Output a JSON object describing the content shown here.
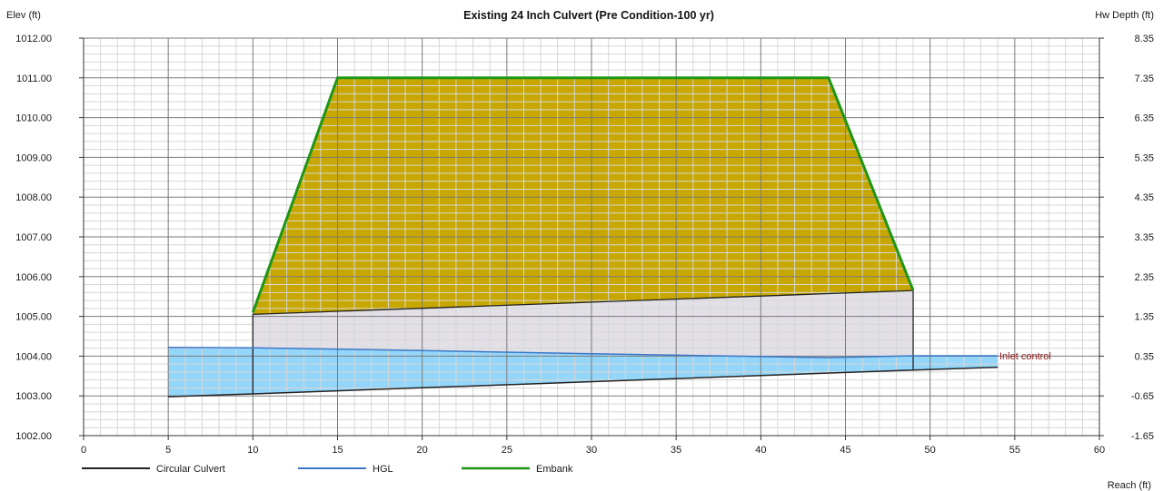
{
  "chart_data": {
    "type": "line",
    "title": "Existing 24 Inch Culvert (Pre Condition-100 yr)",
    "ylabel": "Elev (ft)",
    "y2label": "Hw Depth (ft)",
    "xlabel": "Reach (ft)",
    "xlim": [
      0,
      60
    ],
    "ylim": [
      1002,
      1012
    ],
    "x_ticks": [
      "0",
      "5",
      "10",
      "15",
      "20",
      "25",
      "30",
      "35",
      "40",
      "45",
      "50",
      "55",
      "60"
    ],
    "y_ticks": [
      "1002.00",
      "1003.00",
      "1004.00",
      "1005.00",
      "1006.00",
      "1007.00",
      "1008.00",
      "1009.00",
      "1010.00",
      "1011.00",
      "1012.00"
    ],
    "y2_ticks": [
      "-1.65",
      "-0.65",
      "0.35",
      "1.35",
      "2.35",
      "3.35",
      "4.35",
      "5.35",
      "6.35",
      "7.35",
      "8.35"
    ],
    "grid": true,
    "legend_placement": "bottom-left",
    "annotation": "Inlet control",
    "colors": {
      "culvert": "#222222",
      "hgl": "#3c78c8",
      "embank": "#1e9614",
      "embank_fill": "#c8a800",
      "culvert_fill": "#e2e0e6",
      "water_fill": "#94d6fa",
      "annotation": "#8b1a1a"
    },
    "series": [
      {
        "name": "Circular Culvert",
        "color": "#222222",
        "x": [
          5,
          10,
          49,
          54
        ],
        "y": [
          1002.98,
          1003.05,
          1003.65,
          1003.72
        ]
      },
      {
        "name": "HGL",
        "color": "#3c78c8",
        "x": [
          5,
          10,
          20,
          30,
          40,
          44,
          49,
          54
        ],
        "y": [
          1004.22,
          1004.21,
          1004.14,
          1004.06,
          1003.99,
          1003.96,
          1004.01,
          1004.01
        ]
      },
      {
        "name": "Embank",
        "color": "#1e9614",
        "x": [
          10,
          15,
          44,
          49
        ],
        "y": [
          1005.1,
          1011.0,
          1011.0,
          1005.65
        ]
      }
    ],
    "culvert_crown": {
      "x": [
        10,
        49
      ],
      "y": [
        1005.05,
        1005.65
      ]
    }
  }
}
